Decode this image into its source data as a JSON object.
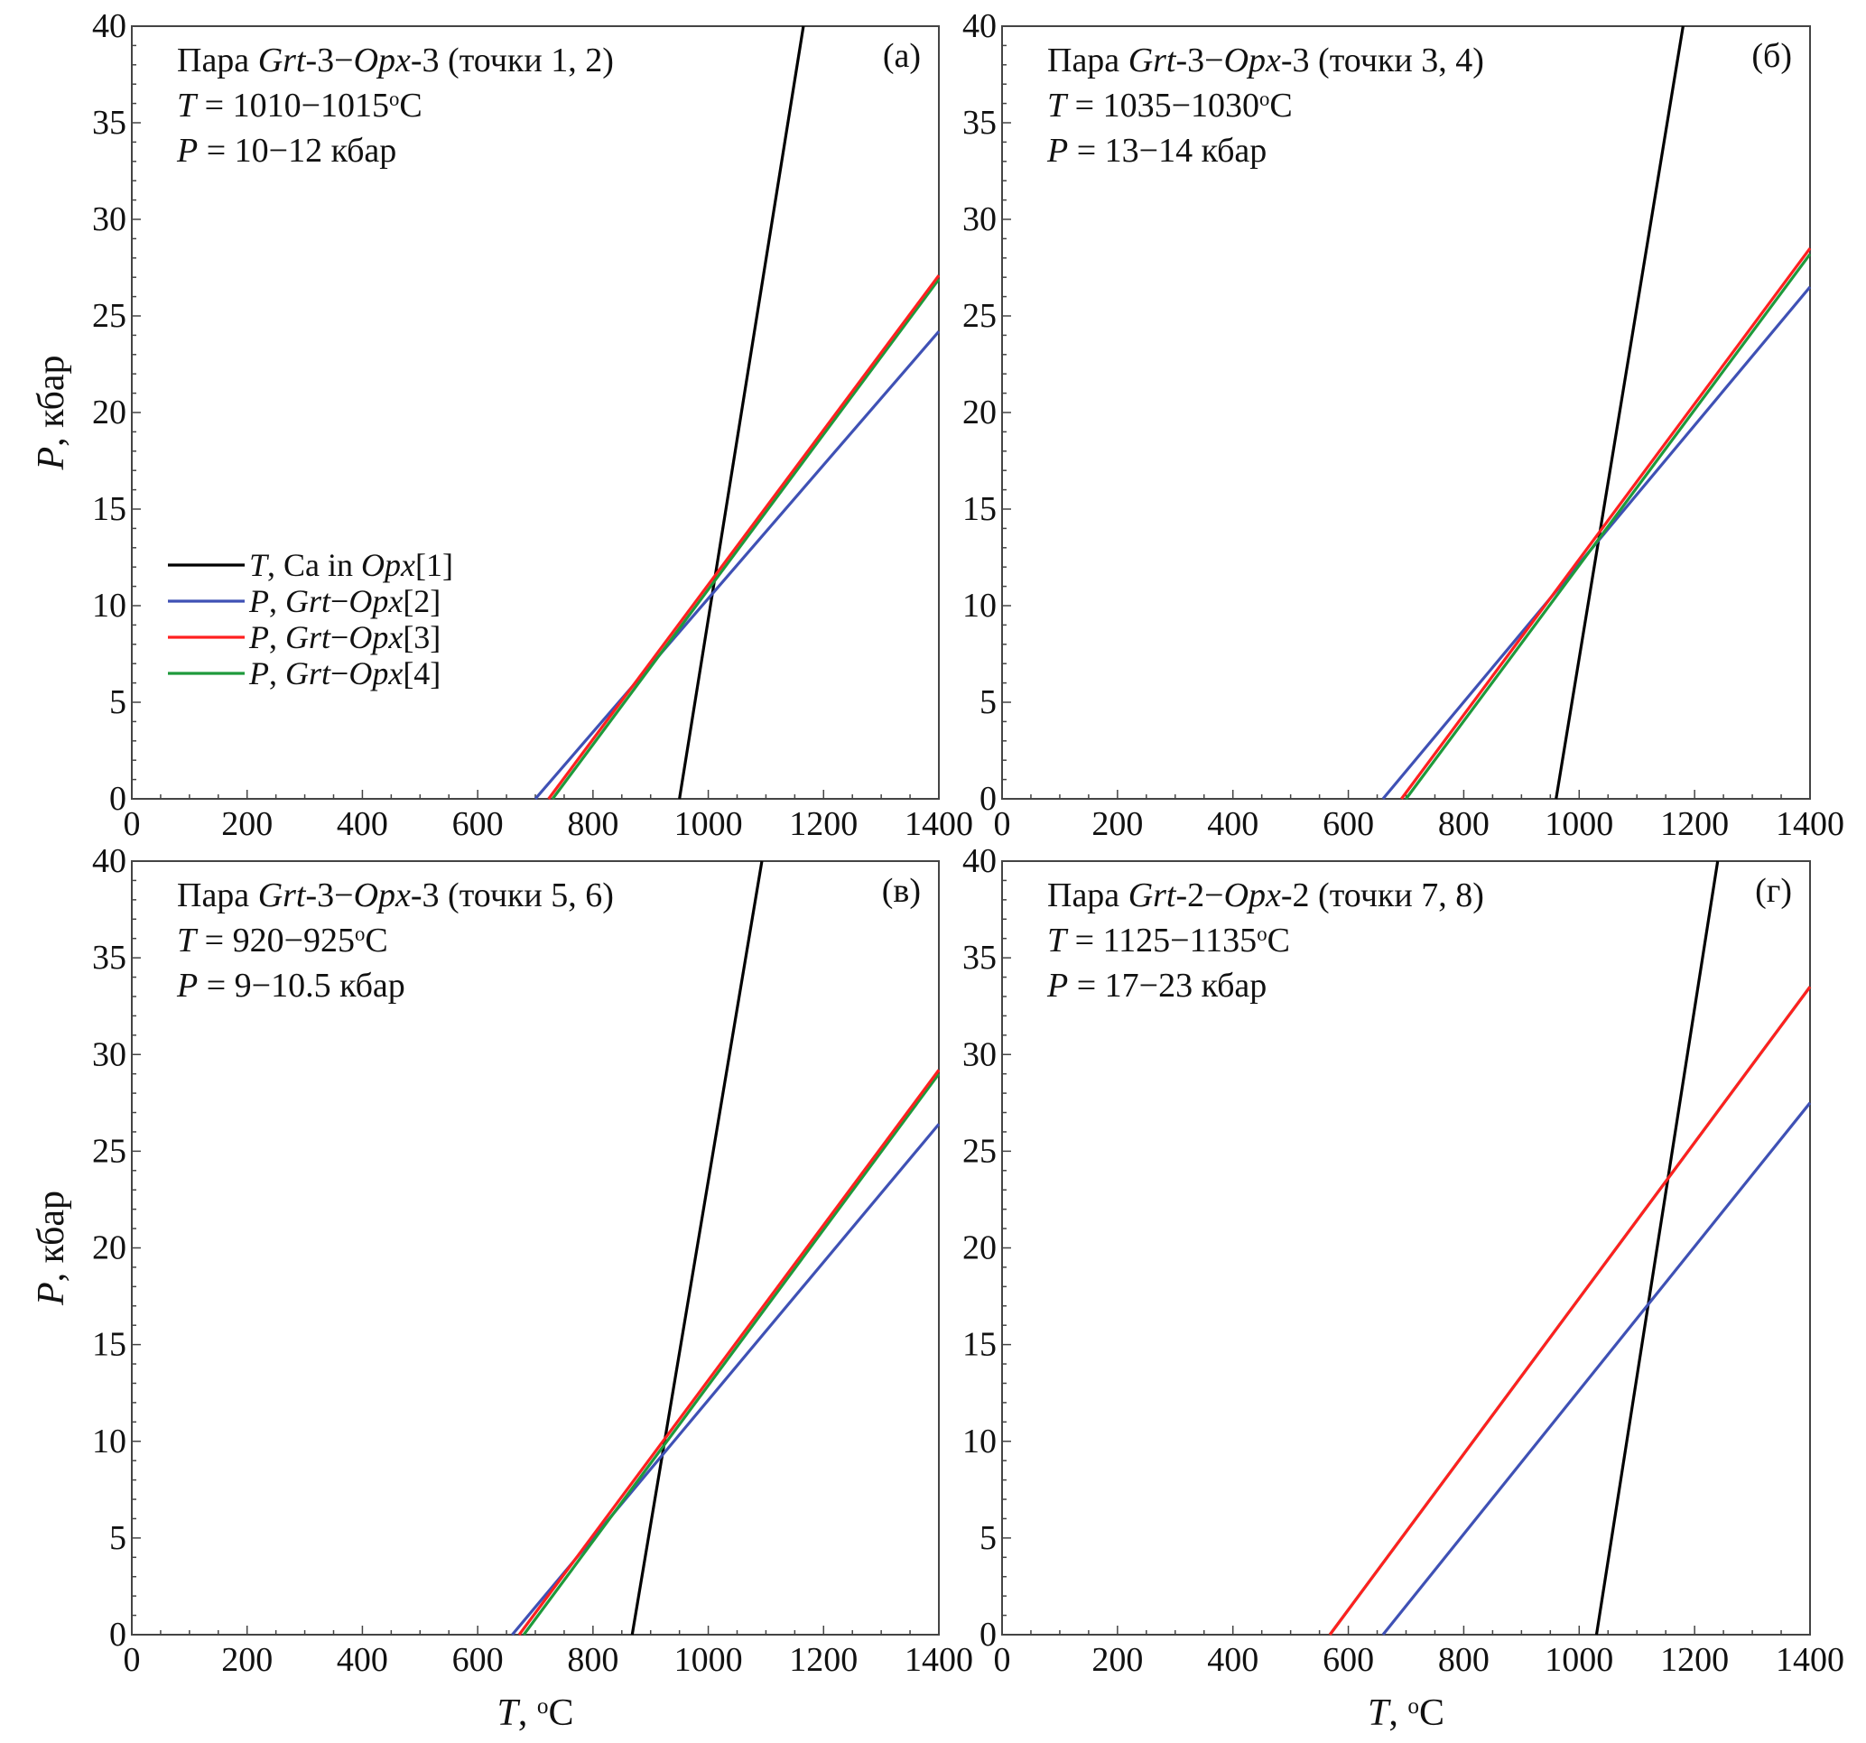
{
  "chart_data": [
    {
      "id": "a",
      "type": "line",
      "panel_label": "(а)",
      "title": [
        {
          "t": "Пара "
        },
        {
          "t": "Grt",
          "i": true
        },
        {
          "t": "-3−"
        },
        {
          "t": "Opx",
          "i": true
        },
        {
          "t": "-3 (точки 1, 2)"
        }
      ],
      "t_text": [
        {
          "t": "T",
          "i": true
        },
        {
          "t": " = 1010−1015"
        },
        {
          "t": "o",
          "sup": true
        },
        {
          "t": "C"
        }
      ],
      "p_text": [
        {
          "t": "P",
          "i": true
        },
        {
          "t": " = 10−12 кбар"
        }
      ],
      "xlim": [
        0,
        1400
      ],
      "ylim": [
        0,
        40
      ],
      "xticks": [
        "0",
        "200",
        "400",
        "600",
        "800",
        "1000",
        "1200",
        "1400"
      ],
      "yticks": [
        "0",
        "5",
        "10",
        "15",
        "20",
        "25",
        "30",
        "35",
        "40"
      ],
      "xlabel": [],
      "ylabel": [
        {
          "t": "P",
          "i": true
        },
        {
          "t": ", кбар"
        }
      ],
      "series": [
        {
          "name": "T, Ca in Opx[1]",
          "color": "#000000",
          "x": [
            950,
            1165
          ],
          "y": [
            0,
            40
          ]
        },
        {
          "name": "P, Grt−Opx[2]",
          "color": "#3f51b5",
          "x": [
            700,
            1400
          ],
          "y": [
            0,
            24.2
          ]
        },
        {
          "name": "P, Grt−Opx[4]",
          "color": "#1e9a3c",
          "x": [
            730,
            1400
          ],
          "y": [
            0,
            26.9
          ]
        },
        {
          "name": "P, Grt−Opx[3]",
          "color": "#ff2020",
          "x": [
            723,
            1400
          ],
          "y": [
            0,
            27.1
          ]
        }
      ],
      "legend": {
        "position": "lower-left",
        "entries": [
          {
            "color": "#000000",
            "label": [
              {
                "t": "T",
                "i": true
              },
              {
                "t": ", Ca in "
              },
              {
                "t": "Opx",
                "i": true
              },
              {
                "t": "[1]"
              }
            ]
          },
          {
            "color": "#3f51b5",
            "label": [
              {
                "t": "P",
                "i": true
              },
              {
                "t": ",  "
              },
              {
                "t": "Grt",
                "i": true
              },
              {
                "t": "−"
              },
              {
                "t": "Opx",
                "i": true
              },
              {
                "t": "[2]"
              }
            ]
          },
          {
            "color": "#ff2020",
            "label": [
              {
                "t": "P",
                "i": true
              },
              {
                "t": ",  "
              },
              {
                "t": "Grt",
                "i": true
              },
              {
                "t": "−"
              },
              {
                "t": "Opx",
                "i": true
              },
              {
                "t": "[3]"
              }
            ]
          },
          {
            "color": "#1e9a3c",
            "label": [
              {
                "t": "P",
                "i": true
              },
              {
                "t": ",  "
              },
              {
                "t": "Grt",
                "i": true
              },
              {
                "t": "−"
              },
              {
                "t": "Opx",
                "i": true
              },
              {
                "t": "[4]"
              }
            ]
          }
        ]
      }
    },
    {
      "id": "b",
      "type": "line",
      "panel_label": "(б)",
      "title": [
        {
          "t": "Пара "
        },
        {
          "t": "Grt",
          "i": true
        },
        {
          "t": "-3−"
        },
        {
          "t": "Opx",
          "i": true
        },
        {
          "t": "-3 (точки 3, 4)"
        }
      ],
      "t_text": [
        {
          "t": "T",
          "i": true
        },
        {
          "t": " = 1035−1030"
        },
        {
          "t": "o",
          "sup": true
        },
        {
          "t": "C"
        }
      ],
      "p_text": [
        {
          "t": "P",
          "i": true
        },
        {
          "t": " = 13−14 кбар"
        }
      ],
      "xlim": [
        0,
        1400
      ],
      "ylim": [
        0,
        40
      ],
      "xticks": [
        "0",
        "200",
        "400",
        "600",
        "800",
        "1000",
        "1200",
        "1400"
      ],
      "yticks": [
        "0",
        "5",
        "10",
        "15",
        "20",
        "25",
        "30",
        "35",
        "40"
      ],
      "xlabel": [],
      "ylabel": [],
      "series": [
        {
          "name": "T, Ca in Opx[1]",
          "color": "#000000",
          "x": [
            960,
            1180
          ],
          "y": [
            0,
            40
          ]
        },
        {
          "name": "P, Grt−Opx[2]",
          "color": "#3f51b5",
          "x": [
            660,
            1400
          ],
          "y": [
            0,
            26.5
          ]
        },
        {
          "name": "P, Grt−Opx[4]",
          "color": "#1e9a3c",
          "x": [
            700,
            1400
          ],
          "y": [
            0,
            28.2
          ]
        },
        {
          "name": "P, Grt−Opx[3]",
          "color": "#ff2020",
          "x": [
            692,
            1400
          ],
          "y": [
            0,
            28.5
          ]
        }
      ]
    },
    {
      "id": "c",
      "type": "line",
      "panel_label": "(в)",
      "title": [
        {
          "t": "Пара "
        },
        {
          "t": "Grt",
          "i": true
        },
        {
          "t": "-3−"
        },
        {
          "t": "Opx",
          "i": true
        },
        {
          "t": "-3 (точки 5, 6)"
        }
      ],
      "t_text": [
        {
          "t": "T",
          "i": true
        },
        {
          "t": " = 920−925"
        },
        {
          "t": "o",
          "sup": true
        },
        {
          "t": "C"
        }
      ],
      "p_text": [
        {
          "t": "P",
          "i": true
        },
        {
          "t": " = 9−10.5 кбар"
        }
      ],
      "xlim": [
        0,
        1400
      ],
      "ylim": [
        0,
        40
      ],
      "xticks": [
        "0",
        "200",
        "400",
        "600",
        "800",
        "1000",
        "1200",
        "1400"
      ],
      "yticks": [
        "0",
        "5",
        "10",
        "15",
        "20",
        "25",
        "30",
        "35",
        "40"
      ],
      "xlabel": [
        {
          "t": "T",
          "i": true
        },
        {
          "t": ", "
        },
        {
          "t": "o",
          "sup": true
        },
        {
          "t": "C"
        }
      ],
      "ylabel": [
        {
          "t": "P",
          "i": true
        },
        {
          "t": ", кбар"
        }
      ],
      "series": [
        {
          "name": "T, Ca in Opx[1]",
          "color": "#000000",
          "x": [
            868,
            1093
          ],
          "y": [
            0,
            40
          ]
        },
        {
          "name": "P, Grt−Opx[2]",
          "color": "#3f51b5",
          "x": [
            660,
            1400
          ],
          "y": [
            0,
            26.4
          ]
        },
        {
          "name": "P, Grt−Opx[4]",
          "color": "#1e9a3c",
          "x": [
            680,
            1400
          ],
          "y": [
            0,
            29.0
          ]
        },
        {
          "name": "P, Grt−Opx[3]",
          "color": "#ff2020",
          "x": [
            672,
            1400
          ],
          "y": [
            0,
            29.2
          ]
        }
      ]
    },
    {
      "id": "d",
      "type": "line",
      "panel_label": "(г)",
      "title": [
        {
          "t": "Пара "
        },
        {
          "t": "Grt",
          "i": true
        },
        {
          "t": "-2−"
        },
        {
          "t": "Opx",
          "i": true
        },
        {
          "t": "-2 (точки 7, 8)"
        }
      ],
      "t_text": [
        {
          "t": "T",
          "i": true
        },
        {
          "t": " = 1125−1135"
        },
        {
          "t": "o",
          "sup": true
        },
        {
          "t": "C"
        }
      ],
      "p_text": [
        {
          "t": "P",
          "i": true
        },
        {
          "t": " = 17−23 кбар"
        }
      ],
      "xlim": [
        0,
        1400
      ],
      "ylim": [
        0,
        40
      ],
      "xticks": [
        "0",
        "200",
        "400",
        "600",
        "800",
        "1000",
        "1200",
        "1400"
      ],
      "yticks": [
        "0",
        "5",
        "10",
        "15",
        "20",
        "25",
        "30",
        "35",
        "40"
      ],
      "xlabel": [
        {
          "t": "T",
          "i": true
        },
        {
          "t": ", "
        },
        {
          "t": "o",
          "sup": true
        },
        {
          "t": "C"
        }
      ],
      "ylabel": [],
      "series": [
        {
          "name": "T, Ca in Opx[1]",
          "color": "#000000",
          "x": [
            1030,
            1240
          ],
          "y": [
            0,
            40
          ]
        },
        {
          "name": "P, Grt−Opx[2]",
          "color": "#3f51b5",
          "x": [
            660,
            1400
          ],
          "y": [
            0,
            27.5
          ]
        },
        {
          "name": "P, Grt−Opx[4]",
          "color": "#1e9a3c",
          "x": [
            568,
            1400
          ],
          "y": [
            0,
            33.5
          ]
        },
        {
          "name": "P, Grt−Opx[3]",
          "color": "#ff2020",
          "x": [
            568,
            1400
          ],
          "y": [
            0,
            33.5
          ]
        }
      ]
    }
  ]
}
